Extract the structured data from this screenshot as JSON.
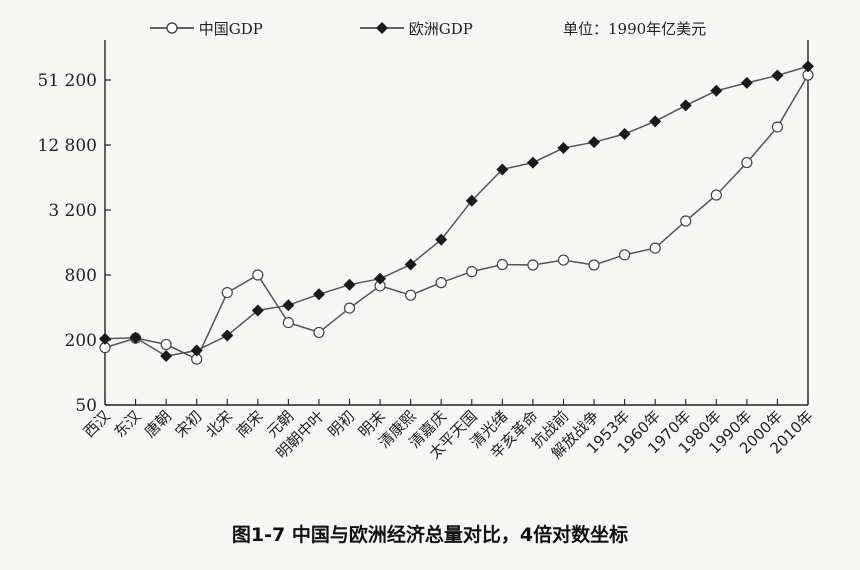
{
  "legend": {
    "china_label": "中国GDP",
    "europe_label": "欧洲GDP",
    "unit_label": "单位：1990年亿美元"
  },
  "caption": "图1-7 中国与欧洲经济总量对比，4倍对数坐标",
  "chart_data": {
    "type": "line",
    "scale": "log4",
    "title": "图1-7 中国与欧洲经济总量对比，4倍对数坐标",
    "unit": "单位：1990年亿美元",
    "y_ticks": [
      50,
      200,
      800,
      3200,
      12800,
      51200
    ],
    "y_tick_labels": [
      "50",
      "200",
      "800",
      "3 200",
      "12 800",
      "51 200"
    ],
    "ylim": [
      50,
      72000
    ],
    "grid": false,
    "legend_position": "top",
    "categories": [
      "西汉",
      "东汉",
      "唐朝",
      "宋初",
      "北宋",
      "南宋",
      "元朝",
      "明朝中叶",
      "明初",
      "明末",
      "清康熙",
      "清嘉庆",
      "太平天国",
      "清光绪",
      "辛亥革命",
      "抗战前",
      "解放战争",
      "1953年",
      "1960年",
      "1970年",
      "1980年",
      "1990年",
      "2000年",
      "2010年"
    ],
    "series": [
      {
        "name": "中国GDP",
        "marker": "open-circle",
        "values": [
          170,
          208,
          182,
          133,
          550,
          800,
          290,
          235,
          395,
          635,
          520,
          680,
          860,
          1000,
          990,
          1100,
          990,
          1230,
          1420,
          2530,
          4400,
          8800,
          18800,
          56800
        ]
      },
      {
        "name": "欧洲GDP",
        "marker": "filled-diamond",
        "values": [
          205,
          210,
          142,
          160,
          220,
          375,
          420,
          530,
          650,
          740,
          1000,
          1700,
          3900,
          7600,
          8800,
          12000,
          13600,
          16200,
          21200,
          29800,
          40700,
          48100,
          56400,
          68500
        ]
      }
    ]
  }
}
